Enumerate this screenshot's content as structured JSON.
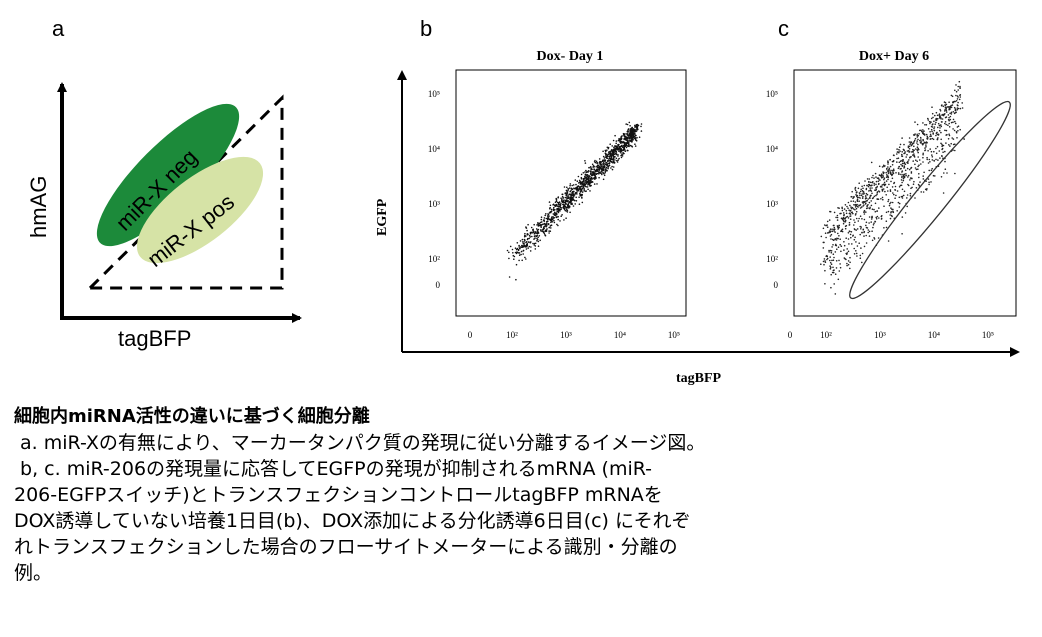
{
  "panel_letters": {
    "a": "a",
    "b": "b",
    "c": "c"
  },
  "schematic": {
    "ylabel": "hmAG",
    "xlabel": "tagBFP",
    "neg_label": "miR-X neg",
    "pos_label": "miR-X pos",
    "colors": {
      "neg": "#1c8a3a",
      "pos": "#d6e3a6",
      "axis": "#000000"
    }
  },
  "shared_xlabel": "tagBFP",
  "shared_ylabel": "EGFP",
  "chart_data": [
    {
      "type": "scatter",
      "title": "Dox- Day 1",
      "xlabel": "tagBFP",
      "ylabel": "EGFP",
      "x_scale": "log",
      "y_scale": "log",
      "x_ticks": [
        "0",
        "10²",
        "10³",
        "10⁴",
        "10⁵"
      ],
      "y_ticks": [
        "0",
        "10²",
        "10³",
        "10⁴",
        "10⁵"
      ],
      "population": {
        "x_range": [
          100,
          20000
        ],
        "y_range": [
          100,
          20000
        ],
        "trend": "diagonal"
      }
    },
    {
      "type": "scatter",
      "title": "Dox+ Day 6",
      "xlabel": "tagBFP",
      "ylabel": "EGFP",
      "x_scale": "log",
      "y_scale": "log",
      "x_ticks": [
        "0",
        "10²",
        "10³",
        "10⁴",
        "10⁵"
      ],
      "y_ticks": [
        "0",
        "10²",
        "10³",
        "10⁴",
        "10⁵"
      ],
      "population": {
        "x_range": [
          100,
          30000
        ],
        "y_range": [
          100,
          60000
        ],
        "trend": "diagonal-broad"
      },
      "gate": {
        "shape": "ellipse",
        "x_range": [
          150,
          60000
        ],
        "y_range": [
          20,
          30000
        ]
      }
    }
  ],
  "caption": {
    "title": "細胞内miRNA活性の違いに基づく細胞分離",
    "lines": [
      " a. miR-Xの有無により、マーカータンパク質の発現に従い分離するイメージ図。",
      " b, c. miR-206の発現量に応答してEGFPの発現が抑制されるmRNA (miR-",
      "206-EGFPスイッチ)とトランスフェクションコントロールtagBFP mRNAを",
      "DOX誘導していない培養1日目(b)、DOX添加による分化誘導6日目(c) にそれぞ",
      "れトランスフェクションした場合のフローサイトメーターによる識別・分離の",
      "例。"
    ]
  }
}
